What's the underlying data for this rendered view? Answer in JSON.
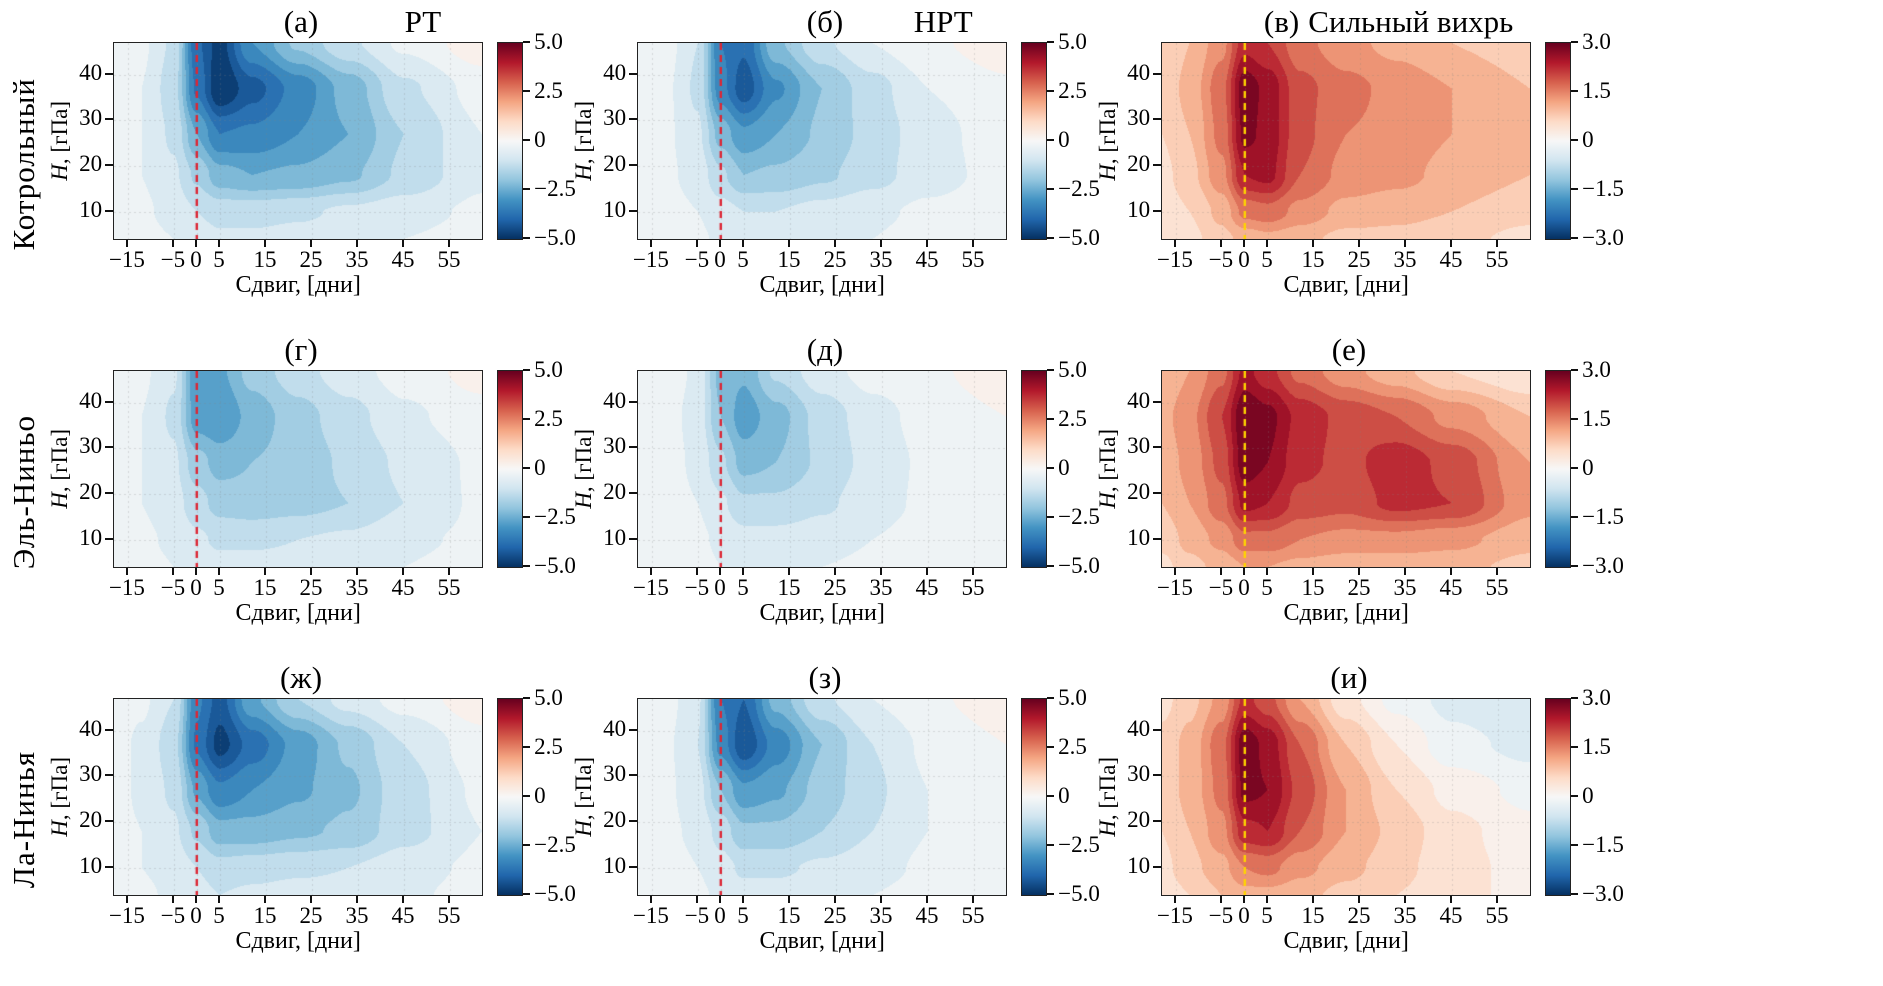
{
  "rows": [
    {
      "label": "Котрольный"
    },
    {
      "label": "Эль-Ниньо"
    },
    {
      "label": "Ла-Нинья"
    }
  ],
  "axes": {
    "xlabel": "Сдвиг, [дни]",
    "ylabel_var": "H",
    "ylabel_rest": ", [гПа]",
    "xlim": [
      -18,
      62
    ],
    "ylim": [
      4,
      47
    ],
    "xticks": [
      {
        "v": -15,
        "label": "−15"
      },
      {
        "v": -5,
        "label": "−5"
      },
      {
        "v": 0,
        "label": "0"
      },
      {
        "v": 5,
        "label": "5"
      },
      {
        "v": 15,
        "label": "15"
      },
      {
        "v": 25,
        "label": "25"
      },
      {
        "v": 35,
        "label": "35"
      },
      {
        "v": 45,
        "label": "45"
      },
      {
        "v": 55,
        "label": "55"
      }
    ],
    "yticks": [
      {
        "v": 10,
        "label": "10"
      },
      {
        "v": 20,
        "label": "20"
      },
      {
        "v": 30,
        "label": "30"
      },
      {
        "v": 40,
        "label": "40"
      }
    ]
  },
  "colorbars": {
    "wide": {
      "vmin": -5,
      "vmax": 5,
      "ticks": [
        {
          "v": 5,
          "label": "5.0"
        },
        {
          "v": 2.5,
          "label": "2.5"
        },
        {
          "v": 0,
          "label": "0"
        },
        {
          "v": -2.5,
          "label": "−2.5"
        },
        {
          "v": -5,
          "label": "−5.0"
        }
      ]
    },
    "narrow": {
      "vmin": -3,
      "vmax": 3,
      "ticks": [
        {
          "v": 3,
          "label": "3.0"
        },
        {
          "v": 1.5,
          "label": "1.5"
        },
        {
          "v": 0,
          "label": "0"
        },
        {
          "v": -1.5,
          "label": "−1.5"
        },
        {
          "v": -3,
          "label": "−3.0"
        }
      ]
    }
  },
  "colormap": {
    "name": "RdBu_r",
    "stops": [
      "#053061",
      "#2166ac",
      "#4393c3",
      "#92c5de",
      "#d1e5f0",
      "#f7f7f7",
      "#fddbc7",
      "#f4a582",
      "#d6604d",
      "#b2182b",
      "#67001f"
    ]
  },
  "panels": [
    {
      "title": "(а)",
      "title_right": "РТ",
      "cbar": "wide",
      "zero_line_color": "#dc2634"
    },
    {
      "title": "(б)",
      "title_right": "НРТ",
      "cbar": "wide",
      "zero_line_color": "#dc2634"
    },
    {
      "title": "(в)",
      "title_right": "Сильный вихрь",
      "cbar": "narrow",
      "zero_line_color": "#ffd400"
    },
    {
      "title": "(г)",
      "title_right": "",
      "cbar": "wide",
      "zero_line_color": "#dc2634"
    },
    {
      "title": "(д)",
      "title_right": "",
      "cbar": "wide",
      "zero_line_color": "#dc2634"
    },
    {
      "title": "(е)",
      "title_right": "",
      "cbar": "narrow",
      "zero_line_color": "#ffd400"
    },
    {
      "title": "(ж)",
      "title_right": "",
      "cbar": "wide",
      "zero_line_color": "#dc2634"
    },
    {
      "title": "(з)",
      "title_right": "",
      "cbar": "wide",
      "zero_line_color": "#dc2634"
    },
    {
      "title": "(и)",
      "title_right": "",
      "cbar": "narrow",
      "zero_line_color": "#ffd400"
    }
  ],
  "chart_data": [
    {
      "panel": "(а)",
      "row": "Котрольный",
      "column": "РТ",
      "type": "heatmap",
      "vmin": -5,
      "vmax": 5,
      "x": [
        -18,
        -12,
        -5,
        0,
        5,
        12,
        22,
        33,
        45,
        62
      ],
      "y": [
        4,
        10,
        18,
        27,
        37,
        47
      ],
      "values": [
        [
          -0.2,
          -0.3,
          -0.5,
          -0.7,
          -0.9,
          -0.9,
          -0.8,
          -0.7,
          -0.5,
          -0.3
        ],
        [
          -0.3,
          -0.4,
          -0.7,
          -1.0,
          -1.2,
          -1.2,
          -1.1,
          -0.9,
          -0.7,
          -0.4
        ],
        [
          -0.3,
          -0.5,
          -0.9,
          -1.6,
          -2.3,
          -2.5,
          -2.4,
          -2.1,
          -1.4,
          -0.6
        ],
        [
          -0.3,
          -0.5,
          -1.1,
          -2.5,
          -3.5,
          -3.4,
          -3.0,
          -2.5,
          -1.5,
          -0.5
        ],
        [
          -0.3,
          -0.5,
          -1.3,
          -3.6,
          -5.0,
          -4.2,
          -3.3,
          -2.3,
          -1.1,
          -0.3
        ],
        [
          -0.2,
          -0.4,
          -1.1,
          -3.9,
          -4.7,
          -3.0,
          -1.9,
          -1.1,
          -0.4,
          0.3
        ]
      ]
    },
    {
      "panel": "(б)",
      "row": "Котрольный",
      "column": "НРТ",
      "type": "heatmap",
      "vmin": -5,
      "vmax": 5,
      "x": [
        -18,
        -12,
        -5,
        0,
        5,
        12,
        22,
        33,
        45,
        62
      ],
      "y": [
        4,
        10,
        18,
        27,
        37,
        47
      ],
      "values": [
        [
          -0.2,
          -0.3,
          -0.4,
          -0.6,
          -0.7,
          -0.7,
          -0.6,
          -0.5,
          -0.3,
          -0.1
        ],
        [
          -0.2,
          -0.3,
          -0.5,
          -0.8,
          -1.0,
          -1.0,
          -0.8,
          -0.6,
          -0.4,
          -0.2
        ],
        [
          -0.2,
          -0.4,
          -0.7,
          -1.4,
          -2.0,
          -1.9,
          -1.6,
          -1.2,
          -0.7,
          -0.3
        ],
        [
          -0.2,
          -0.4,
          -0.9,
          -2.2,
          -2.9,
          -2.5,
          -1.9,
          -1.3,
          -0.7,
          -0.2
        ],
        [
          -0.2,
          -0.4,
          -1.1,
          -3.3,
          -4.3,
          -3.1,
          -2.0,
          -1.2,
          -0.5,
          -0.1
        ],
        [
          -0.2,
          -0.3,
          -1.0,
          -3.5,
          -3.9,
          -2.1,
          -1.1,
          -0.5,
          -0.1,
          0.3
        ]
      ]
    },
    {
      "panel": "(в)",
      "row": "Котрольный",
      "column": "Сильный вихрь",
      "type": "heatmap",
      "vmin": -3,
      "vmax": 3,
      "x": [
        -18,
        -12,
        -5,
        0,
        5,
        12,
        22,
        33,
        45,
        62
      ],
      "y": [
        4,
        10,
        18,
        27,
        37,
        47
      ],
      "values": [
        [
          0.3,
          0.5,
          0.8,
          1.0,
          1.1,
          1.0,
          0.8,
          0.8,
          0.7,
          0.5
        ],
        [
          0.4,
          0.6,
          1.0,
          1.6,
          1.7,
          1.4,
          1.1,
          1.0,
          0.9,
          0.7
        ],
        [
          0.5,
          0.8,
          1.4,
          2.4,
          2.5,
          1.8,
          1.4,
          1.3,
          1.1,
          0.9
        ],
        [
          0.6,
          0.9,
          1.6,
          2.8,
          2.6,
          1.9,
          1.5,
          1.4,
          1.2,
          0.9
        ],
        [
          0.7,
          1.0,
          1.7,
          2.9,
          2.6,
          1.9,
          1.6,
          1.4,
          1.2,
          0.9
        ],
        [
          0.6,
          0.9,
          1.4,
          2.3,
          2.1,
          1.6,
          1.3,
          1.1,
          0.9,
          0.7
        ]
      ]
    },
    {
      "panel": "(г)",
      "row": "Эль-Ниньо",
      "column": "РТ",
      "type": "heatmap",
      "vmin": -5,
      "vmax": 5,
      "x": [
        -18,
        -12,
        -5,
        0,
        5,
        12,
        22,
        33,
        45,
        62
      ],
      "y": [
        4,
        10,
        18,
        27,
        37,
        47
      ],
      "values": [
        [
          -0.2,
          -0.3,
          -0.5,
          -0.7,
          -0.8,
          -0.8,
          -0.8,
          -0.7,
          -0.5,
          -0.3
        ],
        [
          -0.3,
          -0.4,
          -0.6,
          -0.9,
          -1.1,
          -1.1,
          -1.0,
          -0.9,
          -0.6,
          -0.4
        ],
        [
          -0.3,
          -0.5,
          -0.8,
          -1.3,
          -1.7,
          -1.8,
          -1.7,
          -1.5,
          -1.0,
          -0.4
        ],
        [
          -0.3,
          -0.5,
          -0.9,
          -1.8,
          -2.2,
          -2.0,
          -1.8,
          -1.4,
          -0.9,
          -0.4
        ],
        [
          -0.3,
          -0.5,
          -1.1,
          -2.8,
          -3.0,
          -2.3,
          -1.7,
          -1.2,
          -0.6,
          -0.2
        ],
        [
          -0.2,
          -0.4,
          -0.9,
          -2.9,
          -2.6,
          -1.8,
          -1.2,
          -0.7,
          -0.3,
          0.2
        ]
      ]
    },
    {
      "panel": "(д)",
      "row": "Эль-Ниньо",
      "column": "НРТ",
      "type": "heatmap",
      "vmin": -5,
      "vmax": 5,
      "x": [
        -18,
        -12,
        -5,
        0,
        5,
        12,
        22,
        33,
        45,
        62
      ],
      "y": [
        4,
        10,
        18,
        27,
        37,
        47
      ],
      "values": [
        [
          -0.1,
          -0.2,
          -0.3,
          -0.5,
          -0.6,
          -0.6,
          -0.5,
          -0.4,
          -0.2,
          -0.1
        ],
        [
          -0.2,
          -0.3,
          -0.4,
          -0.6,
          -0.8,
          -0.8,
          -0.7,
          -0.5,
          -0.3,
          -0.1
        ],
        [
          -0.2,
          -0.3,
          -0.5,
          -0.9,
          -1.4,
          -1.4,
          -1.1,
          -0.7,
          -0.4,
          -0.1
        ],
        [
          -0.2,
          -0.3,
          -0.6,
          -1.4,
          -2.2,
          -2.0,
          -1.4,
          -0.8,
          -0.4,
          -0.1
        ],
        [
          -0.2,
          -0.3,
          -0.7,
          -2.0,
          -2.8,
          -2.2,
          -1.3,
          -0.7,
          -0.3,
          0.0
        ],
        [
          -0.1,
          -0.2,
          -0.6,
          -2.2,
          -2.4,
          -1.4,
          -0.7,
          -0.3,
          -0.1,
          0.3
        ]
      ]
    },
    {
      "panel": "(е)",
      "row": "Эль-Ниньо",
      "column": "Сильный вихрь",
      "type": "heatmap",
      "vmin": -3,
      "vmax": 3,
      "x": [
        -18,
        -12,
        -5,
        0,
        5,
        12,
        22,
        33,
        45,
        62
      ],
      "y": [
        4,
        10,
        18,
        27,
        37,
        47
      ],
      "values": [
        [
          0.5,
          0.8,
          1.0,
          1.2,
          1.2,
          1.1,
          1.0,
          1.0,
          1.0,
          0.8
        ],
        [
          0.7,
          1.0,
          1.3,
          1.7,
          1.7,
          1.5,
          1.4,
          1.4,
          1.3,
          1.0
        ],
        [
          0.9,
          1.2,
          1.7,
          2.5,
          2.4,
          2.0,
          1.9,
          2.2,
          2.1,
          1.3
        ],
        [
          1.0,
          1.3,
          1.9,
          2.9,
          2.7,
          2.2,
          2.0,
          2.3,
          2.0,
          1.2
        ],
        [
          1.1,
          1.4,
          2.1,
          3.0,
          2.8,
          2.3,
          2.0,
          1.8,
          1.4,
          0.9
        ],
        [
          0.9,
          1.2,
          1.7,
          2.5,
          2.2,
          1.7,
          1.3,
          1.0,
          0.6,
          0.3
        ]
      ]
    },
    {
      "panel": "(ж)",
      "row": "Ла-Нинья",
      "column": "РТ",
      "type": "heatmap",
      "vmin": -5,
      "vmax": 5,
      "x": [
        -18,
        -12,
        -5,
        0,
        5,
        12,
        22,
        33,
        45,
        62
      ],
      "y": [
        4,
        10,
        18,
        27,
        37,
        47
      ],
      "values": [
        [
          -0.3,
          -0.4,
          -0.6,
          -0.8,
          -1.0,
          -0.9,
          -0.8,
          -0.8,
          -0.6,
          -0.3
        ],
        [
          -0.3,
          -0.5,
          -0.7,
          -1.0,
          -1.3,
          -1.2,
          -1.1,
          -1.0,
          -0.7,
          -0.4
        ],
        [
          -0.3,
          -0.5,
          -0.9,
          -1.6,
          -2.3,
          -2.3,
          -2.1,
          -1.9,
          -1.2,
          -0.5
        ],
        [
          -0.3,
          -0.6,
          -1.1,
          -2.6,
          -3.4,
          -3.0,
          -2.6,
          -2.1,
          -1.2,
          -0.4
        ],
        [
          -0.3,
          -0.6,
          -1.3,
          -3.6,
          -4.7,
          -3.8,
          -2.8,
          -1.9,
          -1.0,
          -0.2
        ],
        [
          -0.2,
          -0.4,
          -1.0,
          -3.4,
          -4.2,
          -2.6,
          -1.5,
          -0.8,
          -0.3,
          0.3
        ]
      ]
    },
    {
      "panel": "(з)",
      "row": "Ла-Нинья",
      "column": "НРТ",
      "type": "heatmap",
      "vmin": -5,
      "vmax": 5,
      "x": [
        -18,
        -12,
        -5,
        0,
        5,
        12,
        22,
        33,
        45,
        62
      ],
      "y": [
        4,
        10,
        18,
        27,
        37,
        47
      ],
      "values": [
        [
          -0.2,
          -0.3,
          -0.4,
          -0.6,
          -0.8,
          -0.8,
          -0.7,
          -0.5,
          -0.3,
          -0.1
        ],
        [
          -0.2,
          -0.3,
          -0.5,
          -0.8,
          -1.1,
          -1.1,
          -0.9,
          -0.7,
          -0.4,
          -0.2
        ],
        [
          -0.2,
          -0.4,
          -0.6,
          -1.2,
          -1.9,
          -1.9,
          -1.5,
          -1.0,
          -0.5,
          -0.2
        ],
        [
          -0.2,
          -0.4,
          -0.8,
          -2.0,
          -2.9,
          -2.6,
          -1.8,
          -1.1,
          -0.5,
          -0.1
        ],
        [
          -0.2,
          -0.4,
          -1.0,
          -3.2,
          -4.4,
          -3.3,
          -2.0,
          -1.0,
          -0.4,
          0.0
        ],
        [
          -0.2,
          -0.3,
          -0.9,
          -3.5,
          -4.0,
          -2.3,
          -1.1,
          -0.5,
          -0.1,
          0.3
        ]
      ]
    },
    {
      "panel": "(и)",
      "row": "Ла-Нинья",
      "column": "Сильный вихрь",
      "type": "heatmap",
      "vmin": -3,
      "vmax": 3,
      "x": [
        -18,
        -12,
        -5,
        0,
        5,
        12,
        22,
        33,
        45,
        62
      ],
      "y": [
        4,
        10,
        18,
        27,
        37,
        47
      ],
      "values": [
        [
          0.4,
          0.6,
          0.9,
          1.1,
          1.1,
          1.0,
          0.8,
          0.6,
          0.4,
          0.2
        ],
        [
          0.5,
          0.8,
          1.1,
          1.5,
          1.6,
          1.3,
          1.0,
          0.7,
          0.4,
          0.2
        ],
        [
          0.6,
          0.9,
          1.4,
          2.3,
          2.4,
          1.8,
          1.2,
          0.8,
          0.4,
          0.1
        ],
        [
          0.7,
          1.0,
          1.6,
          2.8,
          2.7,
          2.0,
          1.2,
          0.6,
          0.2,
          -0.1
        ],
        [
          0.7,
          1.0,
          1.7,
          2.9,
          2.6,
          1.8,
          0.9,
          0.3,
          -0.2,
          -0.4
        ],
        [
          0.5,
          0.8,
          1.3,
          2.2,
          1.9,
          1.2,
          0.4,
          -0.1,
          -0.4,
          -0.6
        ]
      ]
    }
  ]
}
